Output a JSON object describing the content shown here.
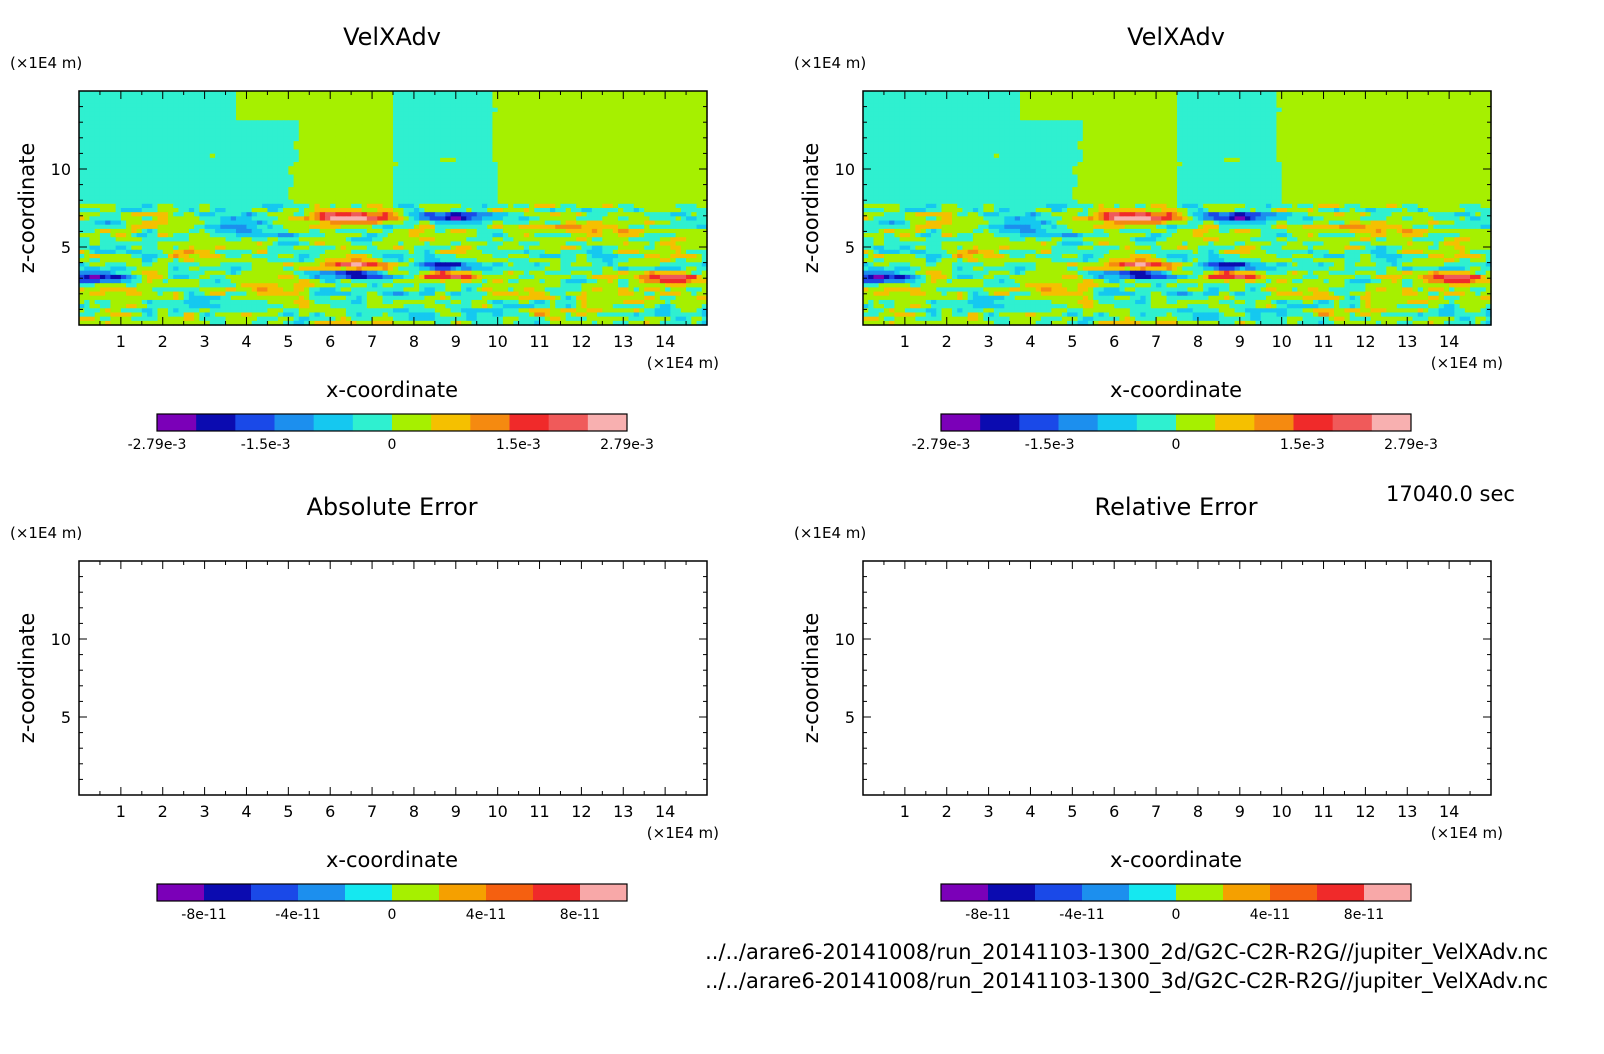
{
  "chart_data": [
    {
      "type": "heatmap",
      "title": "VelXAdv",
      "xlabel": "x-coordinate",
      "ylabel": "z-coordinate",
      "x_unit": "(×1E4 m)",
      "y_unit": "(×1E4 m)",
      "xlim": [
        0,
        15
      ],
      "ylim": [
        0,
        15
      ],
      "x_ticks": [
        "1",
        "2",
        "3",
        "4",
        "5",
        "6",
        "7",
        "8",
        "9",
        "10",
        "11",
        "12",
        "13",
        "14"
      ],
      "y_ticks": [
        "5",
        "10"
      ],
      "colorbar": {
        "colors": [
          "#7b00b8",
          "#0b0bb0",
          "#1a49e8",
          "#1c8fee",
          "#15c8f0",
          "#2ff0d0",
          "#a6f000",
          "#f5c000",
          "#f58a10",
          "#f02a2a",
          "#f05a5a",
          "#f8b0b0"
        ],
        "tick_labels": [
          "-2.79e-3",
          "-1.5e-3",
          "0",
          "1.5e-3",
          "2.79e-3"
        ],
        "tick_values": [
          -0.00279,
          -0.0015,
          0,
          0.0015,
          0.00279
        ],
        "range": [
          -0.00279,
          0.00279
        ]
      },
      "features": [
        {
          "x": 6.6,
          "z": 6.9,
          "value": 0.00279
        },
        {
          "x": 8.8,
          "z": 6.9,
          "value": -0.00279
        },
        {
          "x": 0.5,
          "z": 3.0,
          "value": -0.0025
        },
        {
          "x": 14.3,
          "z": 3.0,
          "value": 0.0022
        },
        {
          "x": 6.6,
          "z": 3.8,
          "value": 0.0022
        },
        {
          "x": 6.6,
          "z": 3.2,
          "value": -0.0021
        },
        {
          "x": 8.8,
          "z": 3.8,
          "value": -0.0022
        },
        {
          "x": 8.8,
          "z": 3.2,
          "value": 0.0021
        },
        {
          "x": 3.6,
          "z": 6.1,
          "value": -0.0012
        },
        {
          "x": 11.8,
          "z": 6.1,
          "value": 0.0012
        }
      ]
    },
    {
      "type": "heatmap",
      "title": "VelXAdv",
      "xlabel": "x-coordinate",
      "ylabel": "z-coordinate",
      "x_unit": "(×1E4 m)",
      "y_unit": "(×1E4 m)",
      "xlim": [
        0,
        15
      ],
      "ylim": [
        0,
        15
      ],
      "x_ticks": [
        "1",
        "2",
        "3",
        "4",
        "5",
        "6",
        "7",
        "8",
        "9",
        "10",
        "11",
        "12",
        "13",
        "14"
      ],
      "y_ticks": [
        "5",
        "10"
      ],
      "colorbar": {
        "colors": [
          "#7b00b8",
          "#0b0bb0",
          "#1a49e8",
          "#1c8fee",
          "#15c8f0",
          "#2ff0d0",
          "#a6f000",
          "#f5c000",
          "#f58a10",
          "#f02a2a",
          "#f05a5a",
          "#f8b0b0"
        ],
        "tick_labels": [
          "-2.79e-3",
          "-1.5e-3",
          "0",
          "1.5e-3",
          "2.79e-3"
        ],
        "tick_values": [
          -0.00279,
          -0.0015,
          0,
          0.0015,
          0.00279
        ],
        "range": [
          -0.00279,
          0.00279
        ]
      },
      "features": [
        {
          "x": 6.6,
          "z": 6.9,
          "value": 0.00279
        },
        {
          "x": 8.8,
          "z": 6.9,
          "value": -0.00279
        },
        {
          "x": 0.5,
          "z": 3.0,
          "value": -0.0025
        },
        {
          "x": 14.3,
          "z": 3.0,
          "value": 0.0022
        },
        {
          "x": 6.6,
          "z": 3.8,
          "value": 0.0022
        },
        {
          "x": 6.6,
          "z": 3.2,
          "value": -0.0021
        },
        {
          "x": 8.8,
          "z": 3.8,
          "value": -0.0022
        },
        {
          "x": 8.8,
          "z": 3.2,
          "value": 0.0021
        },
        {
          "x": 3.6,
          "z": 6.1,
          "value": -0.0012
        },
        {
          "x": 11.8,
          "z": 6.1,
          "value": 0.0012
        }
      ]
    },
    {
      "type": "heatmap",
      "title": "Absolute Error",
      "xlabel": "x-coordinate",
      "ylabel": "z-coordinate",
      "x_unit": "(×1E4 m)",
      "y_unit": "(×1E4 m)",
      "xlim": [
        0,
        15
      ],
      "ylim": [
        0,
        15
      ],
      "x_ticks": [
        "1",
        "2",
        "3",
        "4",
        "5",
        "6",
        "7",
        "8",
        "9",
        "10",
        "11",
        "12",
        "13",
        "14"
      ],
      "y_ticks": [
        "5",
        "10"
      ],
      "colorbar": {
        "colors": [
          "#7b00b8",
          "#0b0bb0",
          "#1a49e8",
          "#1c8fee",
          "#15e8f0",
          "#a6f000",
          "#f5a000",
          "#f56010",
          "#f02a2a",
          "#f8a8a8"
        ],
        "tick_labels": [
          "-8e-11",
          "-4e-11",
          "0",
          "4e-11",
          "8e-11"
        ],
        "tick_values": [
          -8e-11,
          -4e-11,
          0,
          4e-11,
          8e-11
        ],
        "range": [
          -1e-10,
          1e-10
        ]
      },
      "features": []
    },
    {
      "type": "heatmap",
      "title": "Relative Error",
      "xlabel": "x-coordinate",
      "ylabel": "z-coordinate",
      "x_unit": "(×1E4 m)",
      "y_unit": "(×1E4 m)",
      "xlim": [
        0,
        15
      ],
      "ylim": [
        0,
        15
      ],
      "x_ticks": [
        "1",
        "2",
        "3",
        "4",
        "5",
        "6",
        "7",
        "8",
        "9",
        "10",
        "11",
        "12",
        "13",
        "14"
      ],
      "y_ticks": [
        "5",
        "10"
      ],
      "colorbar": {
        "colors": [
          "#7b00b8",
          "#0b0bb0",
          "#1a49e8",
          "#1c8fee",
          "#15e8f0",
          "#a6f000",
          "#f5a000",
          "#f56010",
          "#f02a2a",
          "#f8a8a8"
        ],
        "tick_labels": [
          "-8e-11",
          "-4e-11",
          "0",
          "4e-11",
          "8e-11"
        ],
        "tick_values": [
          -8e-11,
          -4e-11,
          0,
          4e-11,
          8e-11
        ],
        "range": [
          -1e-10,
          1e-10
        ]
      },
      "features": []
    }
  ],
  "time_label": "17040.0 sec",
  "footer": {
    "line1": "../../arare6-20141008/run_20141103-1300_2d/G2C-C2R-R2G//jupiter_VelXAdv.nc",
    "line2": "../../arare6-20141008/run_20141103-1300_3d/G2C-C2R-R2G//jupiter_VelXAdv.nc"
  }
}
